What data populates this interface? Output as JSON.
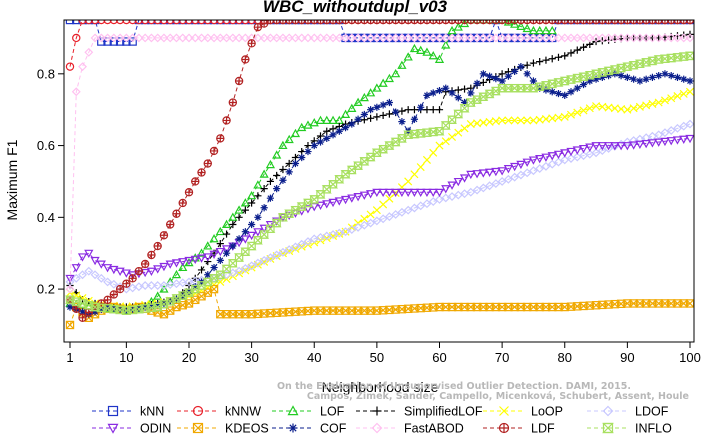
{
  "chart_data": {
    "type": "line",
    "title": "WBC_withoutdupl_v03",
    "xlabel": "Neighborhood size",
    "ylabel": "Maximum F1",
    "xlim": [
      0,
      100
    ],
    "ylim": [
      0.1,
      0.95
    ],
    "xticks": [
      "1",
      "10",
      "20",
      "30",
      "40",
      "50",
      "60",
      "70",
      "80",
      "90",
      "100"
    ],
    "yticks": [
      "0.2",
      "0.4",
      "0.6",
      "0.8"
    ],
    "grid": false,
    "legend_position": "bottom",
    "credit": [
      "Campos, Zimek, Sander, Campello, Micenková, Schubert, Assent, Houle",
      "On the Evaluation of Unsupervised Outlier Detection. DAMI, 2015."
    ],
    "series": [
      {
        "name": "kNN",
        "color": "#1f35c8",
        "marker": "square",
        "points": [
          [
            1,
            0.95
          ],
          [
            5,
            0.95
          ],
          [
            6,
            0.89
          ],
          [
            11,
            0.89
          ],
          [
            12,
            0.95
          ],
          [
            44,
            0.95
          ],
          [
            45,
            0.9
          ],
          [
            68,
            0.9
          ],
          [
            69,
            0.95
          ],
          [
            70,
            0.9
          ],
          [
            78,
            0.9
          ],
          [
            79,
            0.95
          ],
          [
            100,
            0.95
          ]
        ]
      },
      {
        "name": "kNNW",
        "color": "#e8202a",
        "marker": "circle",
        "points": [
          [
            1,
            0.82
          ],
          [
            2,
            0.9
          ],
          [
            3,
            0.95
          ],
          [
            100,
            0.95
          ]
        ]
      },
      {
        "name": "LOF",
        "color": "#22cc22",
        "marker": "triangle-up",
        "points": [
          [
            1,
            0.16
          ],
          [
            5,
            0.15
          ],
          [
            10,
            0.14
          ],
          [
            13,
            0.15
          ],
          [
            15,
            0.18
          ],
          [
            17,
            0.22
          ],
          [
            19,
            0.26
          ],
          [
            22,
            0.3
          ],
          [
            24,
            0.34
          ],
          [
            27,
            0.4
          ],
          [
            30,
            0.46
          ],
          [
            32,
            0.52
          ],
          [
            35,
            0.6
          ],
          [
            38,
            0.65
          ],
          [
            41,
            0.67
          ],
          [
            44,
            0.67
          ],
          [
            47,
            0.72
          ],
          [
            50,
            0.76
          ],
          [
            53,
            0.8
          ],
          [
            56,
            0.87
          ],
          [
            58,
            0.86
          ],
          [
            60,
            0.84
          ],
          [
            62,
            0.92
          ],
          [
            65,
            0.95
          ],
          [
            70,
            0.95
          ],
          [
            75,
            0.92
          ],
          [
            78,
            0.92
          ]
        ]
      },
      {
        "name": "SimplifiedLOF",
        "color": "#000000",
        "marker": "plus",
        "points": [
          [
            1,
            0.21
          ],
          [
            3,
            0.17
          ],
          [
            7,
            0.15
          ],
          [
            12,
            0.15
          ],
          [
            15,
            0.16
          ],
          [
            18,
            0.17
          ],
          [
            21,
            0.23
          ],
          [
            24,
            0.3
          ],
          [
            27,
            0.38
          ],
          [
            30,
            0.44
          ],
          [
            33,
            0.5
          ],
          [
            36,
            0.55
          ],
          [
            39,
            0.6
          ],
          [
            42,
            0.64
          ],
          [
            45,
            0.66
          ],
          [
            50,
            0.68
          ],
          [
            55,
            0.7
          ],
          [
            60,
            0.7
          ],
          [
            61,
            0.75
          ],
          [
            65,
            0.76
          ],
          [
            70,
            0.8
          ],
          [
            75,
            0.83
          ],
          [
            80,
            0.85
          ],
          [
            85,
            0.89
          ],
          [
            90,
            0.9
          ],
          [
            95,
            0.9
          ],
          [
            100,
            0.91
          ]
        ]
      },
      {
        "name": "LoOP",
        "color": "#ffff00",
        "marker": "x",
        "points": [
          [
            1,
            0.19
          ],
          [
            5,
            0.16
          ],
          [
            10,
            0.15
          ],
          [
            15,
            0.16
          ],
          [
            20,
            0.18
          ],
          [
            25,
            0.22
          ],
          [
            30,
            0.26
          ],
          [
            35,
            0.3
          ],
          [
            40,
            0.33
          ],
          [
            45,
            0.36
          ],
          [
            50,
            0.42
          ],
          [
            55,
            0.5
          ],
          [
            60,
            0.6
          ],
          [
            65,
            0.66
          ],
          [
            70,
            0.67
          ],
          [
            75,
            0.67
          ],
          [
            80,
            0.68
          ],
          [
            85,
            0.71
          ],
          [
            90,
            0.7
          ],
          [
            95,
            0.72
          ],
          [
            100,
            0.75
          ]
        ]
      },
      {
        "name": "LDOF",
        "color": "#c8c8ff",
        "marker": "diamond",
        "points": [
          [
            1,
            0.22
          ],
          [
            4,
            0.25
          ],
          [
            7,
            0.22
          ],
          [
            10,
            0.2
          ],
          [
            13,
            0.21
          ],
          [
            16,
            0.21
          ],
          [
            20,
            0.22
          ],
          [
            24,
            0.23
          ],
          [
            28,
            0.25
          ],
          [
            32,
            0.28
          ],
          [
            36,
            0.31
          ],
          [
            40,
            0.34
          ],
          [
            45,
            0.36
          ],
          [
            50,
            0.39
          ],
          [
            55,
            0.42
          ],
          [
            60,
            0.45
          ],
          [
            65,
            0.47
          ],
          [
            70,
            0.5
          ],
          [
            75,
            0.53
          ],
          [
            80,
            0.56
          ],
          [
            85,
            0.58
          ],
          [
            90,
            0.61
          ],
          [
            95,
            0.63
          ],
          [
            100,
            0.66
          ]
        ]
      },
      {
        "name": "ODIN",
        "color": "#8a2be2",
        "marker": "triangle-down",
        "points": [
          [
            1,
            0.23
          ],
          [
            3,
            0.29
          ],
          [
            4,
            0.3
          ],
          [
            5,
            0.28
          ],
          [
            7,
            0.26
          ],
          [
            9,
            0.25
          ],
          [
            11,
            0.24
          ],
          [
            14,
            0.25
          ],
          [
            17,
            0.27
          ],
          [
            20,
            0.28
          ],
          [
            23,
            0.29
          ],
          [
            27,
            0.32
          ],
          [
            30,
            0.35
          ],
          [
            35,
            0.4
          ],
          [
            40,
            0.43
          ],
          [
            45,
            0.45
          ],
          [
            50,
            0.47
          ],
          [
            55,
            0.47
          ],
          [
            60,
            0.47
          ],
          [
            65,
            0.52
          ],
          [
            70,
            0.53
          ],
          [
            75,
            0.56
          ],
          [
            80,
            0.58
          ],
          [
            85,
            0.6
          ],
          [
            90,
            0.6
          ],
          [
            95,
            0.61
          ],
          [
            100,
            0.62
          ]
        ]
      },
      {
        "name": "KDEOS",
        "color": "#f0a800",
        "marker": "box-x",
        "points": [
          [
            1,
            0.1
          ],
          [
            2,
            0.15
          ],
          [
            4,
            0.12
          ],
          [
            6,
            0.14
          ],
          [
            8,
            0.15
          ],
          [
            10,
            0.14
          ],
          [
            12,
            0.15
          ],
          [
            14,
            0.14
          ],
          [
            16,
            0.13
          ],
          [
            18,
            0.15
          ],
          [
            20,
            0.16
          ],
          [
            22,
            0.18
          ],
          [
            24,
            0.2
          ],
          [
            25,
            0.13
          ],
          [
            30,
            0.13
          ],
          [
            40,
            0.14
          ],
          [
            50,
            0.14
          ],
          [
            60,
            0.15
          ],
          [
            70,
            0.15
          ],
          [
            80,
            0.15
          ],
          [
            90,
            0.16
          ],
          [
            100,
            0.16
          ]
        ]
      },
      {
        "name": "COF",
        "color": "#0a1e8c",
        "marker": "asterisk",
        "points": [
          [
            1,
            0.15
          ],
          [
            4,
            0.13
          ],
          [
            7,
            0.15
          ],
          [
            10,
            0.14
          ],
          [
            13,
            0.15
          ],
          [
            16,
            0.16
          ],
          [
            19,
            0.18
          ],
          [
            22,
            0.22
          ],
          [
            25,
            0.28
          ],
          [
            28,
            0.34
          ],
          [
            31,
            0.4
          ],
          [
            34,
            0.48
          ],
          [
            37,
            0.55
          ],
          [
            40,
            0.6
          ],
          [
            43,
            0.63
          ],
          [
            46,
            0.66
          ],
          [
            49,
            0.7
          ],
          [
            52,
            0.72
          ],
          [
            55,
            0.64
          ],
          [
            58,
            0.74
          ],
          [
            61,
            0.76
          ],
          [
            64,
            0.72
          ],
          [
            67,
            0.8
          ],
          [
            70,
            0.78
          ],
          [
            73,
            0.82
          ],
          [
            76,
            0.76
          ],
          [
            80,
            0.74
          ],
          [
            84,
            0.78
          ],
          [
            88,
            0.8
          ],
          [
            92,
            0.78
          ],
          [
            96,
            0.8
          ],
          [
            100,
            0.78
          ]
        ]
      },
      {
        "name": "FastABOD",
        "color": "#ffc0f0",
        "marker": "diamond-open",
        "points": [
          [
            1,
            0.2
          ],
          [
            2,
            0.75
          ],
          [
            3,
            0.82
          ],
          [
            4,
            0.86
          ],
          [
            5,
            0.9
          ],
          [
            10,
            0.9
          ],
          [
            20,
            0.9
          ],
          [
            40,
            0.9
          ],
          [
            60,
            0.9
          ],
          [
            80,
            0.9
          ],
          [
            100,
            0.9
          ]
        ]
      },
      {
        "name": "LDF",
        "color": "#b22222",
        "marker": "circle-plus",
        "points": [
          [
            1,
            0.17
          ],
          [
            3,
            0.12
          ],
          [
            5,
            0.15
          ],
          [
            7,
            0.17
          ],
          [
            9,
            0.2
          ],
          [
            11,
            0.23
          ],
          [
            13,
            0.27
          ],
          [
            15,
            0.32
          ],
          [
            17,
            0.38
          ],
          [
            19,
            0.44
          ],
          [
            21,
            0.5
          ],
          [
            23,
            0.55
          ],
          [
            25,
            0.62
          ],
          [
            27,
            0.72
          ],
          [
            29,
            0.84
          ],
          [
            31,
            0.93
          ],
          [
            33,
            0.95
          ],
          [
            100,
            0.95
          ]
        ]
      },
      {
        "name": "INFLO",
        "color": "#a8e060",
        "marker": "hourglass",
        "points": [
          [
            1,
            0.17
          ],
          [
            5,
            0.15
          ],
          [
            10,
            0.14
          ],
          [
            15,
            0.15
          ],
          [
            20,
            0.19
          ],
          [
            25,
            0.24
          ],
          [
            30,
            0.32
          ],
          [
            35,
            0.4
          ],
          [
            40,
            0.45
          ],
          [
            45,
            0.52
          ],
          [
            50,
            0.58
          ],
          [
            55,
            0.63
          ],
          [
            60,
            0.64
          ],
          [
            65,
            0.72
          ],
          [
            70,
            0.76
          ],
          [
            75,
            0.76
          ],
          [
            80,
            0.78
          ],
          [
            85,
            0.8
          ],
          [
            90,
            0.82
          ],
          [
            95,
            0.84
          ],
          [
            100,
            0.85
          ]
        ]
      }
    ]
  }
}
